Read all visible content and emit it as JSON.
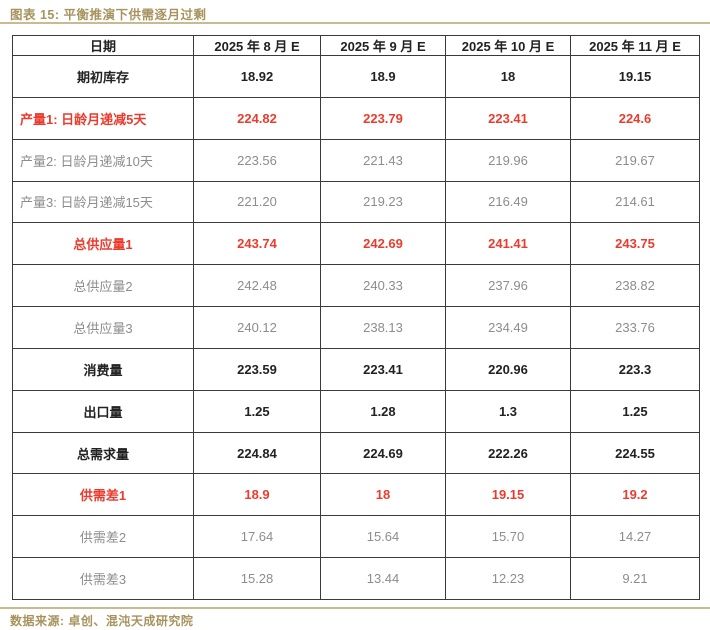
{
  "page": {
    "title": "图表 15: 平衡推演下供需逐月过剩",
    "source": "数据来源: 卓创、混沌天成研究院"
  },
  "colors": {
    "accent_tan": "#a7935e",
    "rule_tan": "#c9ba92",
    "highlight_red": "#ea3c2e",
    "scenario_gray": "#8d8d8d",
    "text_black": "#222222",
    "table_border": "#3a3a3a"
  },
  "table": {
    "columns": [
      "日期",
      "2025 年 8 月 E",
      "2025 年 9 月 E",
      "2025 年 10 月 E",
      "2025 年 11 月 E"
    ],
    "rows": [
      {
        "label": "期初库存",
        "values": [
          "18.92",
          "18.9",
          "18",
          "19.15"
        ],
        "style": "black",
        "align": "center"
      },
      {
        "label": "产量1: 日龄月递减5天",
        "values": [
          "224.82",
          "223.79",
          "223.41",
          "224.6"
        ],
        "style": "red",
        "align": "left"
      },
      {
        "label": "产量2: 日龄月递减10天",
        "values": [
          "223.56",
          "221.43",
          "219.96",
          "219.67"
        ],
        "style": "gray",
        "align": "left"
      },
      {
        "label": "产量3: 日龄月递减15天",
        "values": [
          "221.20",
          "219.23",
          "216.49",
          "214.61"
        ],
        "style": "gray",
        "align": "left"
      },
      {
        "label": "总供应量1",
        "values": [
          "243.74",
          "242.69",
          "241.41",
          "243.75"
        ],
        "style": "red",
        "align": "center"
      },
      {
        "label": "总供应量2",
        "values": [
          "242.48",
          "240.33",
          "237.96",
          "238.82"
        ],
        "style": "gray",
        "align": "center"
      },
      {
        "label": "总供应量3",
        "values": [
          "240.12",
          "238.13",
          "234.49",
          "233.76"
        ],
        "style": "gray",
        "align": "center"
      },
      {
        "label": "消费量",
        "values": [
          "223.59",
          "223.41",
          "220.96",
          "223.3"
        ],
        "style": "black",
        "align": "center"
      },
      {
        "label": "出口量",
        "values": [
          "1.25",
          "1.28",
          "1.3",
          "1.25"
        ],
        "style": "black",
        "align": "center"
      },
      {
        "label": "总需求量",
        "values": [
          "224.84",
          "224.69",
          "222.26",
          "224.55"
        ],
        "style": "black",
        "align": "center"
      },
      {
        "label": "供需差1",
        "values": [
          "18.9",
          "18",
          "19.15",
          "19.2"
        ],
        "style": "red",
        "align": "center"
      },
      {
        "label": "供需差2",
        "values": [
          "17.64",
          "15.64",
          "15.70",
          "14.27"
        ],
        "style": "gray",
        "align": "center"
      },
      {
        "label": "供需差3",
        "values": [
          "15.28",
          "13.44",
          "12.23",
          "9.21"
        ],
        "style": "gray",
        "align": "center"
      }
    ]
  },
  "chart_data": {
    "type": "table",
    "title": "平衡推演下供需逐月过剩",
    "columns": [
      "日期",
      "2025年8月E",
      "2025年9月E",
      "2025年10月E",
      "2025年11月E"
    ],
    "rows": [
      [
        "期初库存",
        18.92,
        18.9,
        18,
        19.15
      ],
      [
        "产量1: 日龄月递减5天",
        224.82,
        223.79,
        223.41,
        224.6
      ],
      [
        "产量2: 日龄月递减10天",
        223.56,
        221.43,
        219.96,
        219.67
      ],
      [
        "产量3: 日龄月递减15天",
        221.2,
        219.23,
        216.49,
        214.61
      ],
      [
        "总供应量1",
        243.74,
        242.69,
        241.41,
        243.75
      ],
      [
        "总供应量2",
        242.48,
        240.33,
        237.96,
        238.82
      ],
      [
        "总供应量3",
        240.12,
        238.13,
        234.49,
        233.76
      ],
      [
        "消费量",
        223.59,
        223.41,
        220.96,
        223.3
      ],
      [
        "出口量",
        1.25,
        1.28,
        1.3,
        1.25
      ],
      [
        "总需求量",
        224.84,
        224.69,
        222.26,
        224.55
      ],
      [
        "供需差1",
        18.9,
        18,
        19.15,
        19.2
      ],
      [
        "供需差2",
        17.64,
        15.64,
        15.7,
        14.27
      ],
      [
        "供需差3",
        15.28,
        13.44,
        12.23,
        9.21
      ]
    ],
    "highlighted_rows_red": [
      "产量1: 日龄月递减5天",
      "总供应量1",
      "供需差1"
    ],
    "layout": {
      "grid": true,
      "header_row": true
    }
  }
}
